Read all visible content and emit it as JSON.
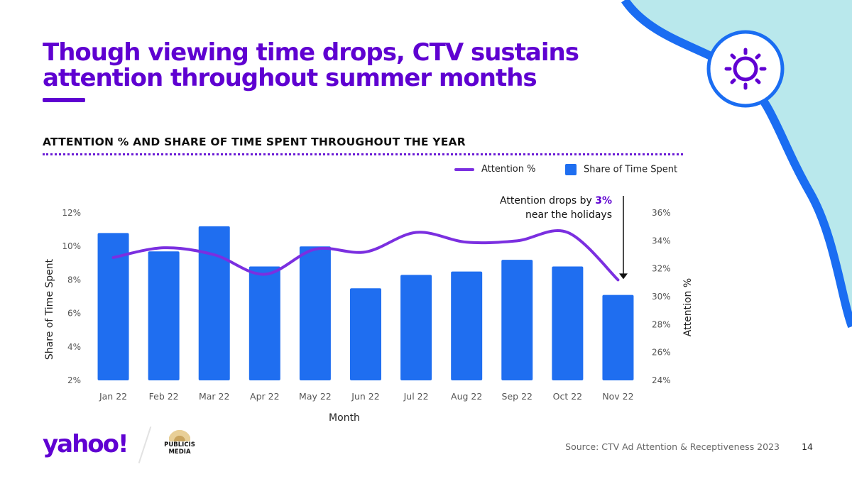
{
  "slide": {
    "title": "Though viewing time drops, CTV sustains attention throughout summer months",
    "subtitle": "ATTENTION % AND  SHARE OF TIME SPENT THROUGHOUT THE YEAR",
    "source": "Source: CTV Ad Attention & Receptiveness 2023",
    "page_number": "14",
    "logo_text": "yahoo!",
    "partner_logo": {
      "line1": "PUBLICIS",
      "line2": "MEDIA"
    },
    "icon": "sun-icon"
  },
  "annotation": {
    "prefix": "Attention drops by ",
    "highlight": "3%",
    "line2": "near the holidays"
  },
  "colors": {
    "brand_purple": "#5f01d1",
    "bar_blue": "#1f6ef0",
    "line_purple": "#7b2fe0",
    "decor_blue": "#1a6df2",
    "decor_teal": "#b9e8ec"
  },
  "chart_data": {
    "type": "bar",
    "categories": [
      "Jan 22",
      "Feb 22",
      "Mar 22",
      "Apr 22",
      "May 22",
      "Jun 22",
      "Jul 22",
      "Aug 22",
      "Sep 22",
      "Oct 22",
      "Nov 22"
    ],
    "series": [
      {
        "name": "Share of Time Spent",
        "type": "bar",
        "axis": "left",
        "values": [
          10.8,
          9.7,
          11.2,
          8.8,
          10.0,
          7.5,
          8.3,
          8.5,
          9.2,
          8.8,
          7.1
        ]
      },
      {
        "name": "Attention %",
        "type": "line",
        "axis": "right",
        "values": [
          32.8,
          33.5,
          33.0,
          31.6,
          33.4,
          33.2,
          34.6,
          33.9,
          34.0,
          34.6,
          31.2
        ]
      }
    ],
    "xlabel": "Month",
    "ylabel": "Share of Time Spent",
    "y2label": "Attention %",
    "ylim": [
      2,
      12
    ],
    "y2lim": [
      24,
      36
    ],
    "yticks": [
      "2%",
      "4%",
      "6%",
      "8%",
      "10%",
      "12%"
    ],
    "y2ticks": [
      "24%",
      "26%",
      "28%",
      "30%",
      "32%",
      "34%",
      "36%"
    ],
    "legend_position": "top-right",
    "grid": false
  }
}
